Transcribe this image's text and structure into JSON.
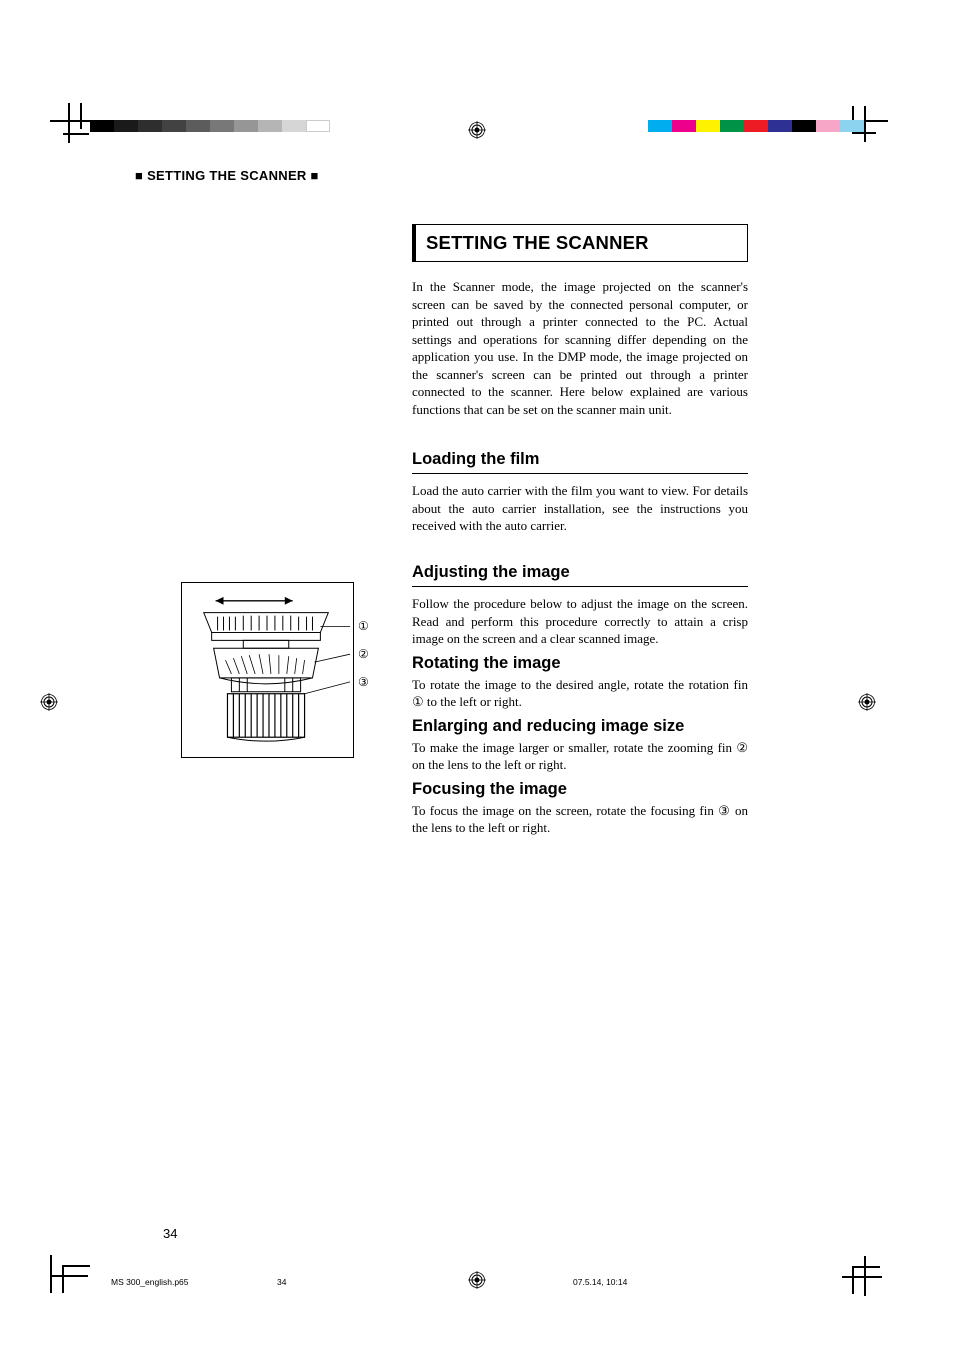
{
  "header": {
    "running_head": "■ SETTING THE SCANNER ■"
  },
  "title_box": "SETTING THE SCANNER",
  "intro": "In the Scanner mode, the image projected on the scanner's screen can be saved by the connected personal computer, or printed out through a printer connected to the PC. Actual settings and operations for scanning differ depending on the application you use. In the DMP mode, the image projected on the scanner's screen can be printed out through a printer connected to the scanner. Here below explained are various functions that can be set on the scanner main unit.",
  "sections": {
    "loading": {
      "heading": "Loading the film",
      "body": "Load the auto carrier with the film you want to view. For details about the auto carrier installation, see the instructions you received with the auto carrier."
    },
    "adjusting": {
      "heading": "Adjusting the image",
      "body": "Follow the procedure below to adjust the image on the screen. Read and perform this procedure correctly to attain a crisp image on the screen and a clear scanned image."
    },
    "rotating": {
      "heading": "Rotating the image",
      "body_pre": "To rotate the image to the desired angle, rotate the rotation fin ",
      "body_post": " to the left or right.",
      "num": "①"
    },
    "enlarging": {
      "heading": "Enlarging and reducing image size",
      "body_pre": "To make the image larger or smaller, rotate the zooming fin ",
      "body_post": " on the lens to the left or right.",
      "num": "②"
    },
    "focusing": {
      "heading": "Focusing the image",
      "body_pre": "To focus the image on the screen, rotate the focusing fin ",
      "body_post": " on the lens to the left or right.",
      "num": "③"
    }
  },
  "figure_labels": {
    "one": "①",
    "two": "②",
    "three": "③"
  },
  "page_number": "34",
  "footer": {
    "file": "MS 300_english.p65",
    "page": "34",
    "timestamp": "07.5.14, 10:14"
  },
  "colors": {
    "left_bar": [
      "#000000",
      "#1a1a1a",
      "#2e2e2e",
      "#424242",
      "#5c5c5c",
      "#787878",
      "#969696",
      "#b5b5b5",
      "#d6d6d6",
      "#ffffff"
    ],
    "right_bar": [
      "#00aeef",
      "#ec008c",
      "#fff200",
      "#009245",
      "#ed1c24",
      "#2e3192",
      "#000000",
      "#f7a6c7",
      "#8cd3f0"
    ],
    "text": "#000000",
    "background": "#ffffff"
  }
}
